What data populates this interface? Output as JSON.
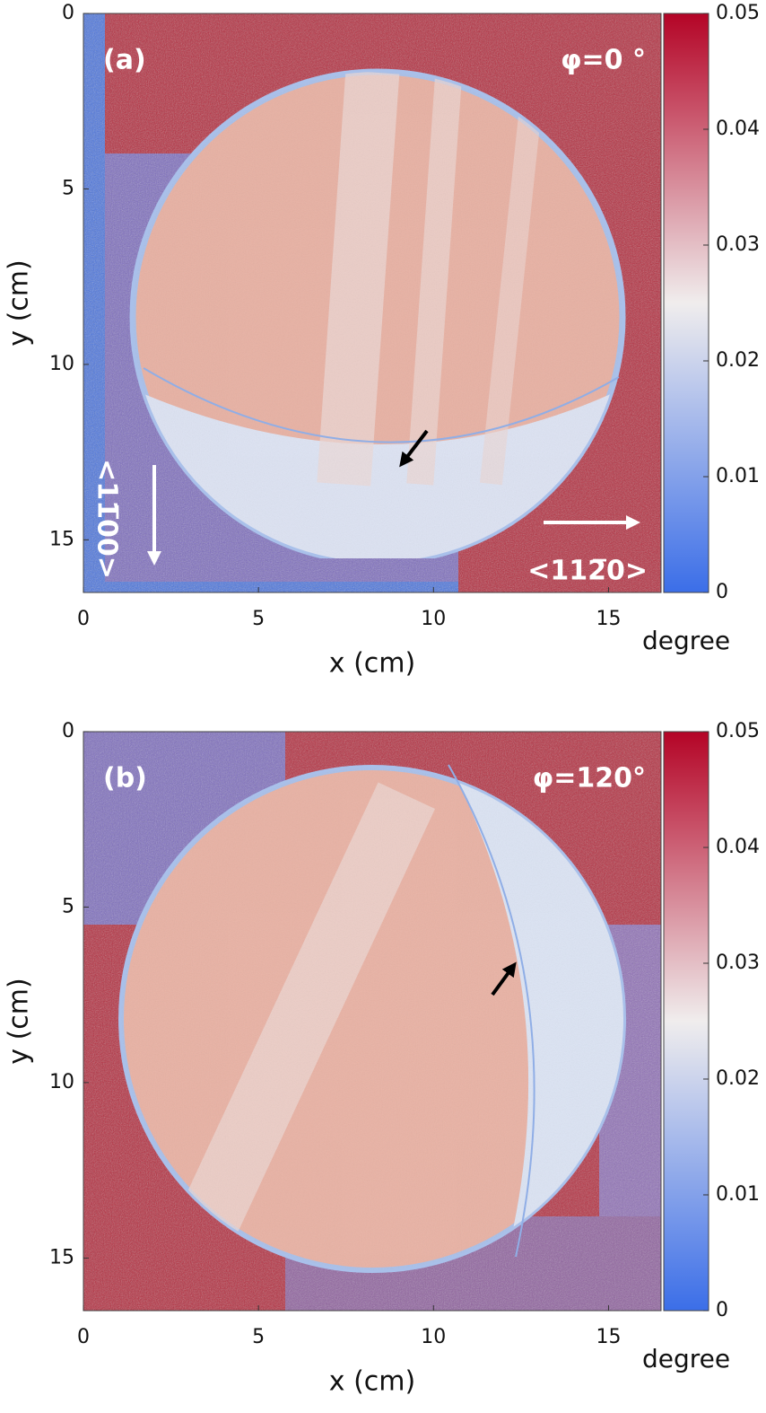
{
  "chart_data": [
    {
      "type": "heatmap",
      "xlabel": "x (cm)",
      "ylabel": "y (cm)",
      "xlim": [
        0,
        16.5
      ],
      "xticks": [
        0,
        5,
        10,
        15
      ],
      "ylim": [
        0,
        16.5
      ],
      "yticks": [
        0,
        5,
        10,
        15
      ],
      "y_reversed": true,
      "clim": [
        0,
        0.05
      ],
      "cticks": [
        0,
        0.01,
        0.02,
        0.03,
        0.04,
        0.05
      ],
      "colorbar_label": "degree",
      "colormap": [
        "#3b6ee8",
        "#f0eded",
        "#b40426"
      ],
      "annotations": [
        "(a)",
        "φ=0 °",
        "<11̅00>",
        "<112̅0>"
      ]
    },
    {
      "type": "heatmap",
      "xlabel": "x (cm)",
      "ylabel": "y (cm)",
      "xlim": [
        0,
        16.5
      ],
      "xticks": [
        0,
        5,
        10,
        15
      ],
      "ylim": [
        0,
        16.5
      ],
      "yticks": [
        0,
        5,
        10,
        15
      ],
      "y_reversed": true,
      "clim": [
        0,
        0.05
      ],
      "cticks": [
        0,
        0.01,
        0.02,
        0.03,
        0.04,
        0.05
      ],
      "colorbar_label": "degree",
      "colormap": [
        "#3b6ee8",
        "#f0eded",
        "#b40426"
      ],
      "annotations": [
        "(b)",
        "φ=120°"
      ]
    }
  ]
}
